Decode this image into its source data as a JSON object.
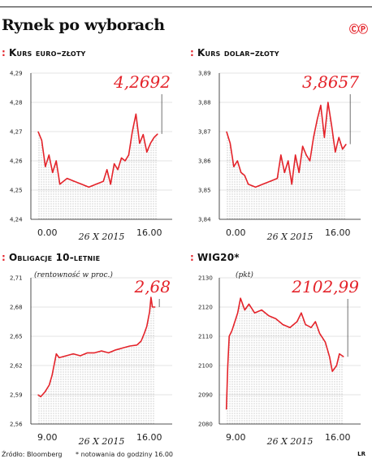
{
  "page": {
    "title": "Rynek po wyborach",
    "logo": "ⒸⓅ",
    "source": "Źródło: Bloomberg",
    "note": "* notowania do godziny 16.00",
    "initials": "LR",
    "marker": ":",
    "accent_color": "#e4232a"
  },
  "chart_data": [
    {
      "id": "eurpln",
      "type": "line",
      "title": "Kurs euro–złoty",
      "subtitle": "",
      "date_label": "26 X 2015",
      "last_value_label": "4,2692",
      "xticks": [
        "0.00",
        "16.00"
      ],
      "x_range": [
        -1,
        18.5
      ],
      "ylim": [
        4.24,
        4.29
      ],
      "yticks": [
        "4,24",
        "4,25",
        "4,26",
        "4,27",
        "4,28",
        "4,29"
      ],
      "ytick_values": [
        4.24,
        4.25,
        4.26,
        4.27,
        4.28,
        4.29
      ],
      "x": [
        0,
        0.5,
        1,
        1.5,
        2,
        2.5,
        3,
        4,
        5,
        6,
        7,
        8,
        9,
        9.5,
        10,
        10.5,
        11,
        11.5,
        12,
        12.5,
        13,
        13.5,
        14,
        14.5,
        15,
        15.5,
        16,
        16.5
      ],
      "y": [
        4.27,
        4.267,
        4.258,
        4.262,
        4.256,
        4.26,
        4.252,
        4.254,
        4.253,
        4.252,
        4.251,
        4.252,
        4.253,
        4.257,
        4.252,
        4.259,
        4.257,
        4.261,
        4.26,
        4.262,
        4.27,
        4.276,
        4.266,
        4.269,
        4.263,
        4.266,
        4.268,
        4.2692
      ]
    },
    {
      "id": "usdpln",
      "type": "line",
      "title": "Kurs dolar–złoty",
      "subtitle": "",
      "date_label": "26 X 2015",
      "last_value_label": "3,8657",
      "xticks": [
        "0.00",
        "16.00"
      ],
      "x_range": [
        -1,
        18.5
      ],
      "ylim": [
        3.84,
        3.89
      ],
      "yticks": [
        "3,84",
        "3,85",
        "3,86",
        "3,87",
        "3,88",
        "3,89"
      ],
      "ytick_values": [
        3.84,
        3.85,
        3.86,
        3.87,
        3.88,
        3.89
      ],
      "x": [
        0,
        0.5,
        1,
        1.5,
        2,
        2.5,
        3,
        4,
        5,
        6,
        7,
        7.5,
        8,
        8.5,
        9,
        9.5,
        10,
        10.5,
        11,
        11.5,
        12,
        12.5,
        13,
        13.5,
        14,
        14.5,
        15,
        15.5,
        16,
        16.5
      ],
      "y": [
        3.87,
        3.866,
        3.858,
        3.86,
        3.856,
        3.855,
        3.852,
        3.851,
        3.852,
        3.853,
        3.854,
        3.862,
        3.856,
        3.86,
        3.852,
        3.862,
        3.856,
        3.865,
        3.862,
        3.86,
        3.868,
        3.874,
        3.879,
        3.868,
        3.88,
        3.872,
        3.863,
        3.868,
        3.864,
        3.8657
      ]
    },
    {
      "id": "bond10",
      "type": "line",
      "title": "Obligacje 10-letnie",
      "subtitle": "(rentowność w proc.)",
      "date_label": "26 X 2015",
      "last_value_label": "2,68",
      "xticks": [
        "9.00",
        "16.00"
      ],
      "x_range": [
        7.5,
        17.5
      ],
      "ylim": [
        2.56,
        2.71
      ],
      "yticks": [
        "2,56",
        "2,59",
        "2,62",
        "2,65",
        "2,68",
        "2,71"
      ],
      "ytick_values": [
        2.56,
        2.59,
        2.62,
        2.65,
        2.68,
        2.71
      ],
      "x": [
        8,
        8.2,
        8.5,
        8.8,
        9,
        9.3,
        9.5,
        10,
        10.5,
        11,
        11.5,
        12,
        12.5,
        13,
        13.5,
        14,
        14.5,
        15,
        15.3,
        15.5,
        15.7,
        15.9,
        16,
        16.1,
        16.3
      ],
      "y": [
        2.59,
        2.588,
        2.593,
        2.6,
        2.61,
        2.632,
        2.628,
        2.63,
        2.632,
        2.63,
        2.633,
        2.633,
        2.635,
        2.633,
        2.636,
        2.638,
        2.64,
        2.641,
        2.645,
        2.652,
        2.66,
        2.675,
        2.69,
        2.68,
        2.68
      ]
    },
    {
      "id": "wig20",
      "type": "line",
      "title": "WIG20*",
      "subtitle": "(pkt)",
      "date_label": "26 X 2015",
      "last_value_label": "2102,99",
      "xticks": [
        "9.00",
        "16.00"
      ],
      "x_range": [
        7.5,
        17.5
      ],
      "ylim": [
        2080,
        2130
      ],
      "yticks": [
        "2080",
        "2090",
        "2100",
        "2110",
        "2120",
        "2130"
      ],
      "ytick_values": [
        2080,
        2090,
        2100,
        2110,
        2120,
        2130
      ],
      "x": [
        8,
        8.1,
        8.2,
        8.4,
        8.6,
        8.8,
        9,
        9.3,
        9.6,
        10,
        10.5,
        11,
        11.5,
        12,
        12.5,
        13,
        13.3,
        13.6,
        14,
        14.3,
        14.6,
        15,
        15.3,
        15.5,
        15.8,
        16,
        16.3
      ],
      "y": [
        2085,
        2100,
        2110,
        2112,
        2115,
        2118,
        2123,
        2119,
        2121,
        2118,
        2119,
        2117,
        2116,
        2114,
        2113,
        2115,
        2118,
        2114,
        2113,
        2115,
        2111,
        2108,
        2103,
        2098,
        2100,
        2104,
        2102.99
      ]
    }
  ]
}
